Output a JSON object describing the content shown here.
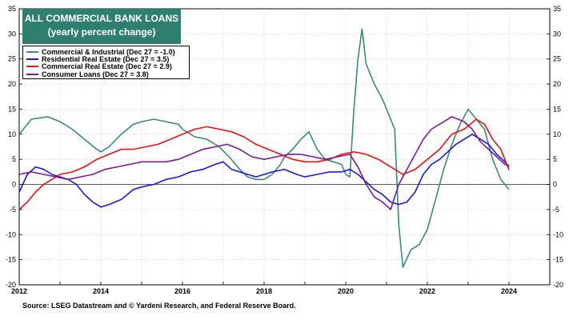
{
  "title": {
    "line1": "ALL COMMERCIAL BANK LOANS",
    "line2": "(yearly percent change)"
  },
  "source": "Source: LSEG Datastream and © Yardeni Research, and Federal Reserve Board.",
  "chart_data": {
    "type": "line",
    "title": "ALL COMMERCIAL BANK LOANS",
    "subtitle": "(yearly percent change)",
    "xlabel": "",
    "ylabel": "",
    "xlim": [
      2012,
      2025
    ],
    "ylim": [
      -20,
      35
    ],
    "x_ticks": [
      "2012",
      "2014",
      "2016",
      "2018",
      "2020",
      "2022",
      "2024"
    ],
    "x_tick_values": [
      2012,
      2014,
      2016,
      2018,
      2020,
      2022,
      2024
    ],
    "y_ticks": [
      "35",
      "30",
      "25",
      "20",
      "15",
      "10",
      "5",
      "0",
      "-5",
      "-10",
      "-15",
      "-20"
    ],
    "y_tick_values": [
      35,
      30,
      25,
      20,
      15,
      10,
      5,
      0,
      -5,
      -10,
      -15,
      -20
    ],
    "grid": true,
    "legend_position": "top-left",
    "series": [
      {
        "name": "Commercial & Industrial (Dec 27 = -1.0)",
        "color": "#3a8a7a",
        "points": [
          [
            2012.0,
            10
          ],
          [
            2012.3,
            13
          ],
          [
            2012.7,
            13.5
          ],
          [
            2013.0,
            12.5
          ],
          [
            2013.3,
            11
          ],
          [
            2013.6,
            9
          ],
          [
            2013.9,
            7
          ],
          [
            2014.0,
            6.5
          ],
          [
            2014.2,
            7.5
          ],
          [
            2014.5,
            10
          ],
          [
            2014.8,
            12
          ],
          [
            2015.0,
            12.5
          ],
          [
            2015.3,
            13
          ],
          [
            2015.6,
            12.5
          ],
          [
            2015.9,
            12
          ],
          [
            2016.0,
            11
          ],
          [
            2016.3,
            9.5
          ],
          [
            2016.6,
            9
          ],
          [
            2016.9,
            7.5
          ],
          [
            2017.2,
            5
          ],
          [
            2017.4,
            3
          ],
          [
            2017.6,
            1.5
          ],
          [
            2017.8,
            1
          ],
          [
            2018.0,
            1
          ],
          [
            2018.2,
            2
          ],
          [
            2018.4,
            4
          ],
          [
            2018.5,
            5.5
          ],
          [
            2018.7,
            7
          ],
          [
            2018.9,
            9
          ],
          [
            2019.1,
            10.5
          ],
          [
            2019.3,
            7
          ],
          [
            2019.5,
            5
          ],
          [
            2019.7,
            4.5
          ],
          [
            2019.9,
            4
          ],
          [
            2020.0,
            2
          ],
          [
            2020.1,
            1.5
          ],
          [
            2020.2,
            15
          ],
          [
            2020.3,
            25
          ],
          [
            2020.4,
            31
          ],
          [
            2020.5,
            24
          ],
          [
            2020.7,
            20
          ],
          [
            2020.9,
            17
          ],
          [
            2021.1,
            13
          ],
          [
            2021.2,
            11
          ],
          [
            2021.3,
            -8
          ],
          [
            2021.4,
            -16.5
          ],
          [
            2021.6,
            -13
          ],
          [
            2021.8,
            -12
          ],
          [
            2022.0,
            -9
          ],
          [
            2022.2,
            -3
          ],
          [
            2022.4,
            3
          ],
          [
            2022.6,
            8
          ],
          [
            2022.8,
            12
          ],
          [
            2023.0,
            15
          ],
          [
            2023.2,
            13
          ],
          [
            2023.4,
            11
          ],
          [
            2023.6,
            5
          ],
          [
            2023.8,
            1
          ],
          [
            2024.0,
            -1
          ]
        ]
      },
      {
        "name": "Residential Real Estate (Dec 27 = 3.5)",
        "color": "#1a1ae6",
        "points": [
          [
            2012.0,
            -1.5
          ],
          [
            2012.2,
            2
          ],
          [
            2012.4,
            3.5
          ],
          [
            2012.6,
            3
          ],
          [
            2012.8,
            2
          ],
          [
            2013.0,
            1.5
          ],
          [
            2013.2,
            1
          ],
          [
            2013.4,
            0
          ],
          [
            2013.6,
            -2
          ],
          [
            2013.8,
            -3.5
          ],
          [
            2014.0,
            -4.5
          ],
          [
            2014.2,
            -4
          ],
          [
            2014.5,
            -3
          ],
          [
            2014.8,
            -1
          ],
          [
            2015.0,
            -0.5
          ],
          [
            2015.3,
            0
          ],
          [
            2015.6,
            1
          ],
          [
            2015.9,
            1.5
          ],
          [
            2016.2,
            2.5
          ],
          [
            2016.5,
            3
          ],
          [
            2016.8,
            4
          ],
          [
            2017.0,
            4.5
          ],
          [
            2017.2,
            3
          ],
          [
            2017.4,
            2.5
          ],
          [
            2017.6,
            2
          ],
          [
            2017.8,
            1.5
          ],
          [
            2018.0,
            2
          ],
          [
            2018.2,
            2.5
          ],
          [
            2018.5,
            3
          ],
          [
            2018.8,
            2
          ],
          [
            2019.0,
            1.5
          ],
          [
            2019.3,
            2
          ],
          [
            2019.6,
            2.5
          ],
          [
            2019.9,
            2.5
          ],
          [
            2020.1,
            3
          ],
          [
            2020.3,
            2
          ],
          [
            2020.5,
            0.5
          ],
          [
            2020.7,
            -1
          ],
          [
            2020.9,
            -2
          ],
          [
            2021.1,
            -3.5
          ],
          [
            2021.3,
            -4
          ],
          [
            2021.5,
            -3.5
          ],
          [
            2021.7,
            -1.5
          ],
          [
            2021.9,
            2
          ],
          [
            2022.1,
            4
          ],
          [
            2022.3,
            5
          ],
          [
            2022.5,
            6.5
          ],
          [
            2022.7,
            8
          ],
          [
            2022.9,
            9
          ],
          [
            2023.1,
            10
          ],
          [
            2023.3,
            9
          ],
          [
            2023.5,
            8
          ],
          [
            2023.7,
            6
          ],
          [
            2023.9,
            4.5
          ],
          [
            2024.0,
            3.5
          ]
        ]
      },
      {
        "name": "Commercial Real Estate (Dec 27 = 2.9)",
        "color": "#ee1111",
        "points": [
          [
            2012.0,
            -5
          ],
          [
            2012.2,
            -3.5
          ],
          [
            2012.4,
            -1.5
          ],
          [
            2012.6,
            0
          ],
          [
            2012.8,
            1
          ],
          [
            2013.0,
            2
          ],
          [
            2013.3,
            2.5
          ],
          [
            2013.6,
            3.5
          ],
          [
            2013.9,
            5
          ],
          [
            2014.2,
            6
          ],
          [
            2014.5,
            7
          ],
          [
            2014.8,
            7
          ],
          [
            2015.1,
            7.5
          ],
          [
            2015.4,
            8
          ],
          [
            2015.7,
            9
          ],
          [
            2016.0,
            10
          ],
          [
            2016.3,
            11
          ],
          [
            2016.6,
            11.5
          ],
          [
            2016.9,
            11
          ],
          [
            2017.2,
            10.5
          ],
          [
            2017.5,
            9.5
          ],
          [
            2017.8,
            8
          ],
          [
            2018.1,
            7
          ],
          [
            2018.4,
            6
          ],
          [
            2018.7,
            5
          ],
          [
            2019.0,
            4.5
          ],
          [
            2019.3,
            4.5
          ],
          [
            2019.6,
            5
          ],
          [
            2019.9,
            6
          ],
          [
            2020.2,
            6.5
          ],
          [
            2020.5,
            6
          ],
          [
            2020.8,
            5
          ],
          [
            2021.1,
            3.5
          ],
          [
            2021.4,
            2
          ],
          [
            2021.7,
            3
          ],
          [
            2022.0,
            5
          ],
          [
            2022.3,
            7
          ],
          [
            2022.6,
            10
          ],
          [
            2022.9,
            11
          ],
          [
            2023.2,
            13
          ],
          [
            2023.4,
            12
          ],
          [
            2023.6,
            9
          ],
          [
            2023.8,
            7
          ],
          [
            2024.0,
            2.9
          ]
        ]
      },
      {
        "name": "Consumer Loans (Dec 27 = 3.8)",
        "color": "#7a1a9a",
        "points": [
          [
            2012.0,
            2
          ],
          [
            2012.3,
            2.5
          ],
          [
            2012.6,
            2
          ],
          [
            2012.9,
            1.5
          ],
          [
            2013.2,
            1
          ],
          [
            2013.5,
            1.5
          ],
          [
            2013.8,
            2
          ],
          [
            2014.1,
            3
          ],
          [
            2014.4,
            3.5
          ],
          [
            2014.7,
            4
          ],
          [
            2015.0,
            4.5
          ],
          [
            2015.3,
            4.5
          ],
          [
            2015.6,
            4.5
          ],
          [
            2015.9,
            5
          ],
          [
            2016.2,
            6
          ],
          [
            2016.5,
            7
          ],
          [
            2016.8,
            7.5
          ],
          [
            2017.1,
            8
          ],
          [
            2017.4,
            7
          ],
          [
            2017.7,
            5.5
          ],
          [
            2018.0,
            5
          ],
          [
            2018.3,
            5.5
          ],
          [
            2018.6,
            6
          ],
          [
            2018.9,
            6
          ],
          [
            2019.2,
            5.5
          ],
          [
            2019.5,
            5
          ],
          [
            2019.8,
            5.5
          ],
          [
            2020.1,
            6
          ],
          [
            2020.3,
            3.5
          ],
          [
            2020.5,
            0
          ],
          [
            2020.7,
            -2.5
          ],
          [
            2020.9,
            -3.5
          ],
          [
            2021.1,
            -5
          ],
          [
            2021.3,
            0
          ],
          [
            2021.5,
            3
          ],
          [
            2021.7,
            6
          ],
          [
            2021.9,
            9
          ],
          [
            2022.1,
            11
          ],
          [
            2022.3,
            12
          ],
          [
            2022.6,
            13.5
          ],
          [
            2022.9,
            12.5
          ],
          [
            2023.1,
            11
          ],
          [
            2023.3,
            8.5
          ],
          [
            2023.5,
            7
          ],
          [
            2023.7,
            5.5
          ],
          [
            2023.9,
            4
          ],
          [
            2024.0,
            3.8
          ]
        ]
      }
    ]
  }
}
